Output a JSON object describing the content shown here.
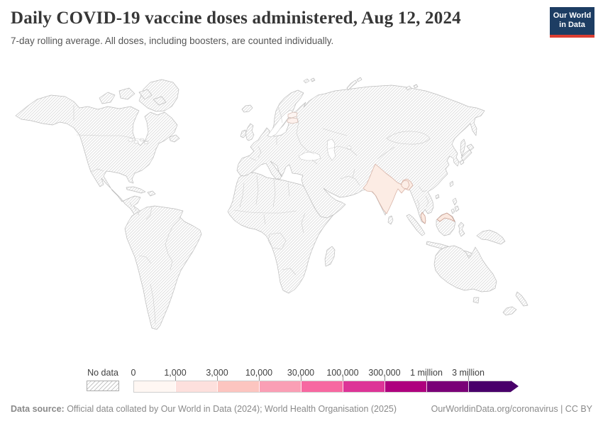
{
  "header": {
    "title": "Daily COVID-19 vaccine doses administered, Aug 12, 2024",
    "subtitle": "7-day rolling average. All doses, including boosters, are counted individually.",
    "logo": {
      "line1": "Our World",
      "line2": "in Data",
      "background": "#1d3d63",
      "accent": "#dc3e32",
      "text_color": "#ffffff"
    }
  },
  "map": {
    "ocean_color": "#ffffff",
    "no_data_pattern": {
      "type": "diagonal-hatch",
      "line_color": "#dedede",
      "background": "#ffffff"
    },
    "land_border_color": "#bdbdbd",
    "country_border_color": "#c9c9c9",
    "entities_with_data": [
      {
        "id": "india",
        "name": "India",
        "fill": "#fcece4",
        "stroke": "#d8b3a6"
      },
      {
        "id": "bangladesh",
        "name": "Bangladesh",
        "fill": "#fceee7",
        "stroke": "#d8b3a6"
      },
      {
        "id": "malaysia-peninsula",
        "name": "Malaysia (peninsular)",
        "fill": "#fbe9e0",
        "stroke": "#c99e90"
      },
      {
        "id": "malaysia-borneo",
        "name": "Malaysia (Borneo)",
        "fill": "#fbe9e0",
        "stroke": "#c99e90"
      },
      {
        "id": "estonia",
        "name": "Estonia",
        "fill": "#fdf5f2",
        "stroke": "#d5bdb4"
      },
      {
        "id": "latvia",
        "name": "Latvia",
        "fill": "#fdf1ed",
        "stroke": "#d5bdb4"
      }
    ]
  },
  "legend": {
    "no_data_label": "No data",
    "tick_labels": [
      "0",
      "1,000",
      "3,000",
      "10,000",
      "30,000",
      "100,000",
      "300,000",
      "1 million",
      "3 million"
    ],
    "colors": [
      "#fff7f3",
      "#fde0dd",
      "#fcc5c0",
      "#fa9fb5",
      "#f768a1",
      "#dd3497",
      "#ae017e",
      "#7a0177",
      "#49006a"
    ],
    "label_color": "#404040"
  },
  "footer": {
    "source_label": "Data source:",
    "source_text": " Official data collated by Our World in Data (2024); World Health Organisation (2025)",
    "link_text": "OurWorldinData.org/coronavirus | CC BY"
  },
  "chart_data": {
    "type": "choropleth_map",
    "title": "Daily COVID-19 vaccine doses administered",
    "date": "Aug 12, 2024",
    "subtitle": "7-day rolling average. All doses, including boosters, are counted individually.",
    "metric": "Daily COVID-19 vaccine doses administered (7-day rolling average)",
    "legend_bins": [
      {
        "range": "0 – 1,000",
        "color": "#fff7f3"
      },
      {
        "range": "1,000 – 3,000",
        "color": "#fde0dd"
      },
      {
        "range": "3,000 – 10,000",
        "color": "#fcc5c0"
      },
      {
        "range": "10,000 – 30,000",
        "color": "#fa9fb5"
      },
      {
        "range": "30,000 – 100,000",
        "color": "#f768a1"
      },
      {
        "range": "100,000 – 300,000",
        "color": "#dd3497"
      },
      {
        "range": "300,000 – 1 million",
        "color": "#ae017e"
      },
      {
        "range": "1 million – 3 million",
        "color": "#7a0177"
      },
      {
        "range": "3 million +",
        "color": "#49006a"
      }
    ],
    "no_data": {
      "label": "No data",
      "style": "diagonal hatching"
    },
    "shaded_entities": [
      {
        "name": "India",
        "bin": "lightest shades (low end of scale)"
      },
      {
        "name": "Bangladesh",
        "bin": "lightest shades (low end of scale)"
      },
      {
        "name": "Malaysia",
        "bin": "lightest shades (low end of scale)"
      },
      {
        "name": "Estonia",
        "bin": "lightest shades (low end of scale)"
      },
      {
        "name": "Latvia",
        "bin": "lightest shades (low end of scale)"
      }
    ],
    "all_other_countries": "No data (hatched)",
    "legend_position": "bottom",
    "projection": "world map"
  }
}
